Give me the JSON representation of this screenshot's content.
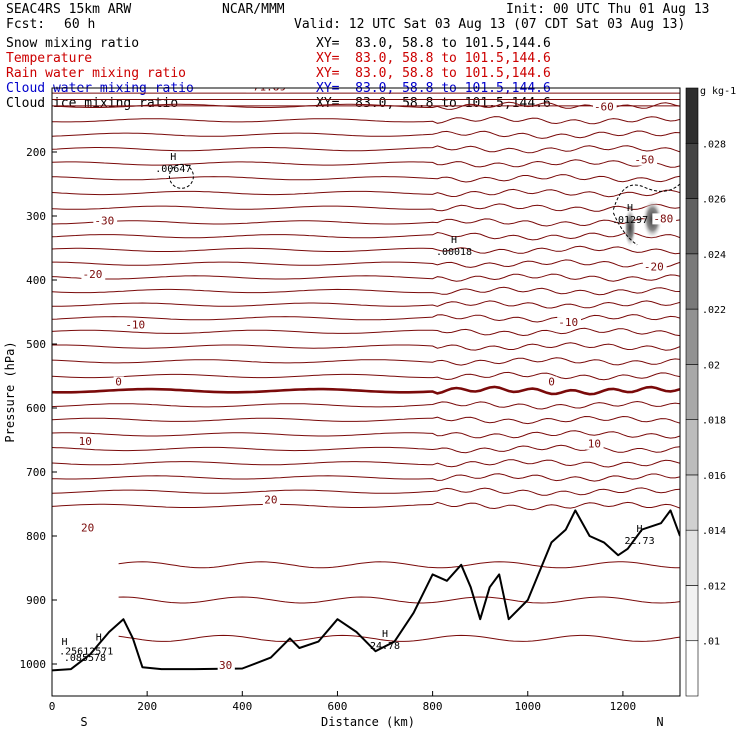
{
  "header": {
    "model": "SEAC4RS 15km ARW",
    "org": "NCAR/MMM",
    "init": "Init: 00 UTC Thu 01 Aug 13",
    "fcst_label": "Fcst:",
    "fcst_value": "60 h",
    "valid": "Valid: 12 UTC Sat 03 Aug 13 (07 CDT Sat 03 Aug 13)"
  },
  "fields": [
    {
      "name": "Snow mixing ratio",
      "xy": "XY=  83.0, 58.8 to 101.5,144.6",
      "color": "#000000"
    },
    {
      "name": "Temperature",
      "xy": "XY=  83.0, 58.8 to 101.5,144.6",
      "color": "#cc0000"
    },
    {
      "name": "Rain water mixing ratio",
      "xy": "XY=  83.0, 58.8 to 101.5,144.6",
      "color": "#cc0000"
    },
    {
      "name": "Cloud water mixing ratio",
      "xy": "XY=  83.0, 58.8 to 101.5,144.6",
      "color": "#0000cc"
    },
    {
      "name": "Cloud ice mixing ratio",
      "xy": "XY=  83.0, 58.8 to 101.5,144.6",
      "color": "#000000"
    }
  ],
  "chart_data": {
    "type": "contour",
    "xlabel": "Distance (km)",
    "ylabel": "Pressure (hPa)",
    "xlim": [
      0,
      1320
    ],
    "ylim": [
      1050,
      100
    ],
    "x_ticks": [
      "0",
      "200",
      "400",
      "600",
      "800",
      "1000",
      "1200"
    ],
    "y_ticks": [
      "200",
      "300",
      "400",
      "500",
      "600",
      "700",
      "800",
      "900",
      "1000"
    ],
    "x_end_labels": {
      "left": "S",
      "right": "N"
    },
    "temperature_contours": [
      {
        "label": "-60",
        "p": 128
      },
      {
        "label": "-50",
        "p": 218
      },
      {
        "label": "-30",
        "p": 310
      },
      {
        "label": "-20",
        "p": 396
      },
      {
        "label": "-10",
        "p": 481
      },
      {
        "label": "0",
        "p": 573
      },
      {
        "label": "10",
        "p": 664
      },
      {
        "label": "20",
        "p": 753
      }
    ],
    "temperature_labels": [
      {
        "text": "-60",
        "x": 1160,
        "p": 135
      },
      {
        "text": "-50",
        "x": 1245,
        "p": 218
      },
      {
        "text": "-30",
        "x": 110,
        "p": 313
      },
      {
        "text": "-20",
        "x": 85,
        "p": 397
      },
      {
        "text": "-20",
        "x": 1265,
        "p": 385
      },
      {
        "text": "-10",
        "x": 175,
        "p": 476
      },
      {
        "text": "-10",
        "x": 1085,
        "p": 472
      },
      {
        "text": "0",
        "x": 140,
        "p": 565
      },
      {
        "text": "0",
        "x": 1050,
        "p": 565
      },
      {
        "text": "10",
        "x": 70,
        "p": 658
      },
      {
        "text": "10",
        "x": 1140,
        "p": 662
      },
      {
        "text": "20",
        "x": 460,
        "p": 749
      },
      {
        "text": "20",
        "x": 75,
        "p": 793
      },
      {
        "text": "30",
        "x": 365,
        "p": 1008
      },
      {
        "text": "-80",
        "x": 1285,
        "p": 310
      },
      {
        "text": "-71.89",
        "x": 450,
        "p": 104
      }
    ],
    "extrema": [
      {
        "symbol": "H",
        "value": ".00647",
        "x": 255,
        "p": 225
      },
      {
        "symbol": "H",
        "value": ".00018",
        "x": 845,
        "p": 355
      },
      {
        "symbol": "H",
        "value": ".01297",
        "x": 1215,
        "p": 305
      },
      {
        "symbol": "H",
        "value": "22.73",
        "x": 1235,
        "p": 806
      },
      {
        "symbol": "H",
        "value": "24.78",
        "x": 700,
        "p": 970
      }
    ],
    "terrain_surface_pressure": {
      "x": [
        0,
        40,
        80,
        120,
        150,
        170,
        190,
        230,
        300,
        400,
        460,
        500,
        520,
        560,
        600,
        640,
        680,
        720,
        760,
        800,
        830,
        860,
        880,
        900,
        920,
        940,
        960,
        1000,
        1050,
        1080,
        1100,
        1130,
        1160,
        1190,
        1210,
        1240,
        1280,
        1300,
        1320
      ],
      "p": [
        1010,
        1008,
        985,
        950,
        930,
        960,
        1005,
        1008,
        1008,
        1007,
        990,
        960,
        975,
        965,
        930,
        950,
        980,
        965,
        920,
        860,
        870,
        845,
        880,
        930,
        880,
        860,
        930,
        900,
        810,
        790,
        760,
        800,
        810,
        830,
        820,
        790,
        780,
        760,
        800
      ]
    },
    "colorbar": {
      "unit": "g kg-1",
      "labels": [
        ".01",
        ".012",
        ".014",
        ".016",
        ".018",
        ".02",
        ".022",
        ".024",
        ".026",
        ".028"
      ],
      "colors": [
        "#ffffff",
        "#f2f2f2",
        "#e2e2e2",
        "#d0d0d0",
        "#bcbcbc",
        "#a8a8a8",
        "#929292",
        "#7a7a7a",
        "#606060",
        "#444444",
        "#2e2e2e"
      ]
    },
    "misc_labels": [
      {
        "text": "H",
        "x": 20,
        "p": 970,
        "color": "#0000cc"
      },
      {
        "text": ".25612571",
        "x": 15,
        "p": 985,
        "color": "#0000cc"
      },
      {
        "text": ".085578",
        "x": 25,
        "p": 995,
        "color": "#7a0a0a"
      },
      {
        "text": "H",
        "x": 92,
        "p": 963,
        "color": "#0000cc"
      }
    ],
    "colors": {
      "temperature": "#7a0a0a",
      "zero_line": "#7a0a0a",
      "terrain": "#000000",
      "snow": "#000000"
    }
  }
}
